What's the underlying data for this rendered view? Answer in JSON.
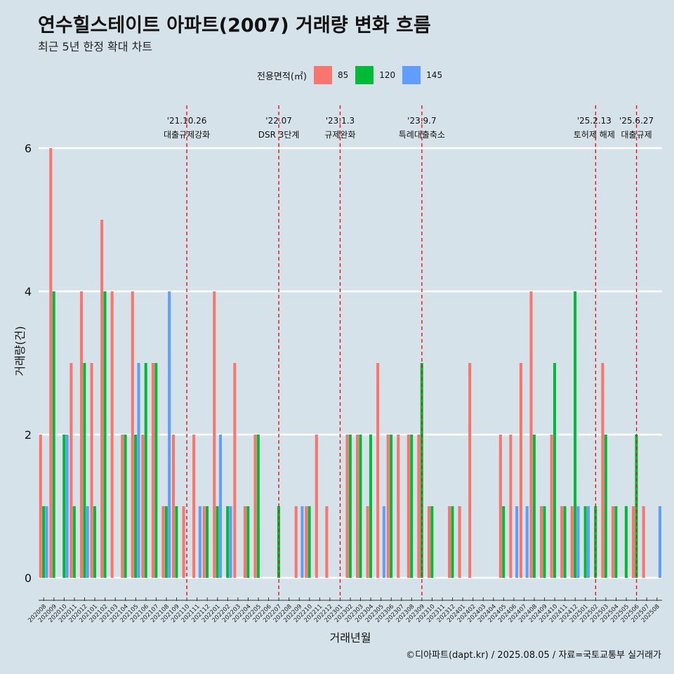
{
  "title": "연수힐스테이트 아파트(2007) 거래량 변화 흐름",
  "subtitle": "최근 5년 한정 확대 차트",
  "caption": "©디아파트(dapt.kr) / 2025.08.05 / 자료=국토교통부 실거래가",
  "legend": {
    "title": "전용면적(㎡)",
    "items": [
      {
        "label": "85",
        "color": "#f8766d"
      },
      {
        "label": "120",
        "color": "#00ba38"
      },
      {
        "label": "145",
        "color": "#619cff"
      }
    ]
  },
  "chart_data": {
    "type": "bar",
    "xlabel": "거래년월",
    "ylabel": "거래량(건)",
    "ylim": [
      0,
      6
    ],
    "yticks": [
      0,
      2,
      4,
      6
    ],
    "grid": true,
    "legend_position": "top",
    "categories": [
      "202008",
      "202009",
      "202010",
      "202011",
      "202012",
      "202101",
      "202102",
      "202103",
      "202104",
      "202105",
      "202106",
      "202107",
      "202108",
      "202109",
      "202110",
      "202111",
      "202112",
      "202201",
      "202202",
      "202203",
      "202204",
      "202205",
      "202206",
      "202207",
      "202208",
      "202209",
      "202210",
      "202211",
      "202212",
      "202301",
      "202302",
      "202303",
      "202304",
      "202305",
      "202306",
      "202307",
      "202308",
      "202309",
      "202310",
      "202311",
      "202312",
      "202401",
      "202402",
      "202403",
      "202404",
      "202405",
      "202406",
      "202407",
      "202408",
      "202409",
      "202410",
      "202411",
      "202412",
      "202501",
      "202502",
      "202503",
      "202504",
      "202505",
      "202506",
      "202507",
      "202508"
    ],
    "series": [
      {
        "name": "85",
        "color": "#f8766d",
        "values": [
          2,
          6,
          0,
          3,
          4,
          3,
          5,
          4,
          2,
          4,
          2,
          3,
          1,
          2,
          1,
          2,
          1,
          4,
          0,
          3,
          1,
          2,
          0,
          0,
          0,
          1,
          1,
          2,
          1,
          0,
          2,
          2,
          1,
          3,
          2,
          2,
          2,
          2,
          1,
          0,
          1,
          1,
          3,
          0,
          0,
          2,
          2,
          3,
          4,
          1,
          2,
          1,
          1,
          0,
          0,
          3,
          1,
          0,
          1,
          1,
          0
        ]
      },
      {
        "name": "120",
        "color": "#00ba38",
        "values": [
          1,
          4,
          2,
          1,
          3,
          1,
          4,
          0,
          2,
          2,
          3,
          3,
          1,
          1,
          0,
          0,
          1,
          1,
          1,
          0,
          1,
          2,
          0,
          1,
          0,
          0,
          1,
          0,
          0,
          0,
          2,
          2,
          2,
          0,
          2,
          0,
          2,
          3,
          1,
          0,
          1,
          0,
          0,
          0,
          0,
          1,
          0,
          0,
          2,
          1,
          3,
          1,
          4,
          1,
          1,
          2,
          1,
          1,
          2,
          0,
          0
        ]
      },
      {
        "name": "145",
        "color": "#619cff",
        "values": [
          1,
          0,
          2,
          0,
          1,
          0,
          0,
          0,
          0,
          3,
          0,
          0,
          4,
          0,
          0,
          1,
          0,
          2,
          1,
          0,
          0,
          0,
          0,
          0,
          0,
          1,
          0,
          0,
          0,
          0,
          0,
          0,
          0,
          1,
          0,
          0,
          0,
          0,
          0,
          0,
          0,
          0,
          0,
          0,
          0,
          0,
          1,
          1,
          0,
          0,
          0,
          0,
          1,
          1,
          0,
          0,
          0,
          0,
          0,
          0,
          1
        ]
      }
    ],
    "annotations": [
      {
        "x": "202110",
        "date": "'21.10.26",
        "label": "대출규제강화"
      },
      {
        "x": "202207",
        "date": "'22.07",
        "label": "DSR 3단계"
      },
      {
        "x": "202301",
        "date": "'23.1.3",
        "label": "규제완화"
      },
      {
        "x": "202309",
        "date": "'23.9.7",
        "label": "특례대출축소"
      },
      {
        "x": "202502",
        "date": "'25.2.13",
        "label": "토허제 해제"
      },
      {
        "x": "202506",
        "date": "'25.6.27",
        "label": "대출규제"
      }
    ]
  }
}
